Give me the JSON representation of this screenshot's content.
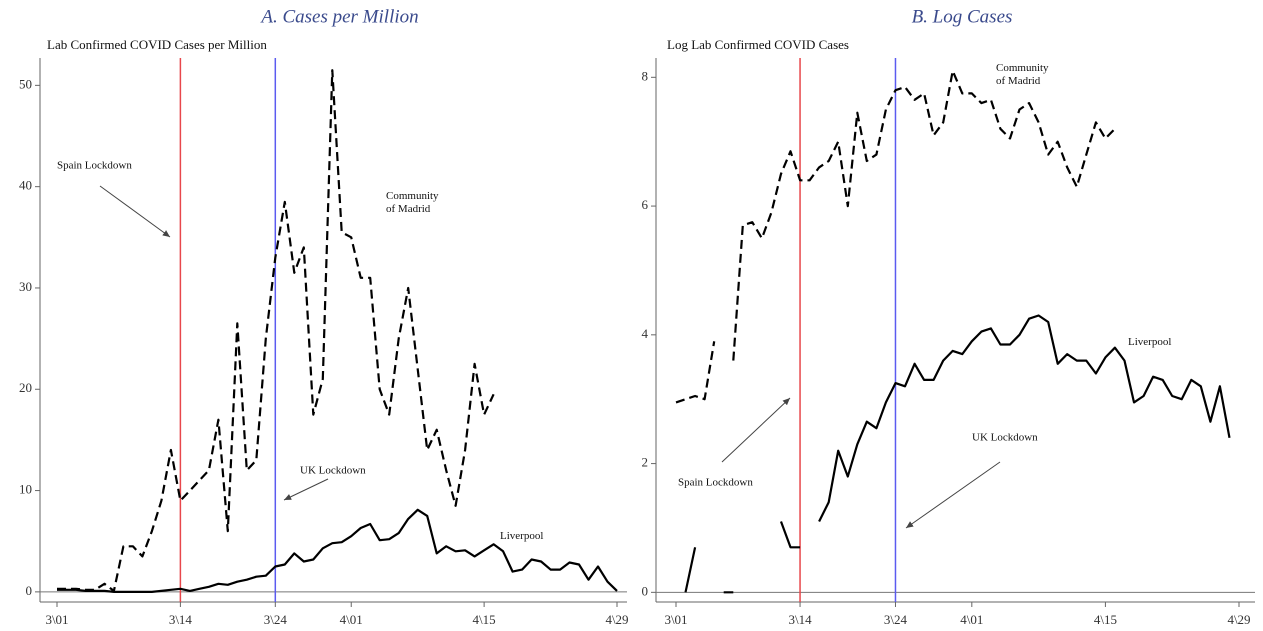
{
  "chart_data": [
    {
      "type": "line",
      "title": "A. Cases per Million",
      "ylabel": "Lab Confirmed COVID Cases per Million",
      "x": [
        "03-01",
        "03-02",
        "03-03",
        "03-04",
        "03-05",
        "03-06",
        "03-07",
        "03-08",
        "03-09",
        "03-10",
        "03-11",
        "03-12",
        "03-13",
        "03-14",
        "03-15",
        "03-16",
        "03-17",
        "03-18",
        "03-19",
        "03-20",
        "03-21",
        "03-22",
        "03-23",
        "03-24",
        "03-25",
        "03-26",
        "03-27",
        "03-28",
        "03-29",
        "03-30",
        "03-31",
        "04-01",
        "04-02",
        "04-03",
        "04-04",
        "04-05",
        "04-06",
        "04-07",
        "04-08",
        "04-09",
        "04-10",
        "04-11",
        "04-12",
        "04-13",
        "04-14",
        "04-15",
        "04-16",
        "04-17",
        "04-18",
        "04-19",
        "04-20",
        "04-21",
        "04-22",
        "04-23",
        "04-24",
        "04-25",
        "04-26",
        "04-27",
        "04-28",
        "04-29"
      ],
      "series": [
        {
          "name": "Community of Madrid",
          "color": "#000000",
          "dash": "dashed",
          "values": [
            0.3,
            0.3,
            0.3,
            0.2,
            0.2,
            0.8,
            0.1,
            4.5,
            4.5,
            3.5,
            6,
            9,
            14,
            9,
            10,
            11,
            12,
            17,
            6,
            26.5,
            12,
            13,
            25,
            33,
            38.5,
            31.5,
            34,
            17.5,
            21,
            51.5,
            35.5,
            35,
            31,
            31,
            20,
            17.5,
            25,
            30,
            22,
            14,
            16,
            12,
            8.5,
            14,
            22.5,
            17.5,
            19.5,
            null,
            null,
            null,
            null,
            null,
            null,
            null,
            null,
            null,
            null,
            null,
            null,
            null
          ]
        },
        {
          "name": "Liverpool",
          "color": "#000000",
          "dash": "solid",
          "values": [
            0.2,
            0.2,
            0.2,
            0.1,
            0.1,
            0.1,
            0,
            0,
            0,
            0,
            0,
            0.1,
            0.2,
            0.3,
            0.1,
            0.3,
            0.5,
            0.8,
            0.7,
            1,
            1.2,
            1.5,
            1.6,
            2.5,
            2.7,
            3.8,
            3,
            3.2,
            4.3,
            4.8,
            4.9,
            5.5,
            6.3,
            6.7,
            5.1,
            5.2,
            5.8,
            7.2,
            8.1,
            7.5,
            3.8,
            4.5,
            4,
            4.1,
            3.5,
            4.1,
            4.7,
            4,
            2,
            2.2,
            3.2,
            3,
            2.2,
            2.2,
            2.9,
            2.7,
            1.2,
            2.5,
            1,
            0.1
          ]
        }
      ],
      "vlines": [
        {
          "x": "03-14",
          "color": "#e8474b"
        },
        {
          "x": "03-24",
          "color": "#5b5bf0"
        }
      ],
      "annotations": [
        "Spain Lockdown",
        "UK Lockdown"
      ],
      "ylim": [
        -1,
        52.7
      ],
      "yticks": [
        0,
        10,
        20,
        30,
        40,
        50
      ],
      "xlim": [
        "03-01",
        "04-29"
      ],
      "xticks": [
        {
          "value": "03-01",
          "label": "3\\01"
        },
        {
          "value": "03-14",
          "label": "3\\14"
        },
        {
          "value": "03-24",
          "label": "3\\24"
        },
        {
          "value": "04-01",
          "label": "4\\01"
        },
        {
          "value": "04-15",
          "label": "4\\15"
        },
        {
          "value": "04-29",
          "label": "4\\29"
        }
      ]
    },
    {
      "type": "line",
      "title": "B. Log Cases",
      "ylabel": "Log Lab Confirmed COVID Cases",
      "x": [
        "03-01",
        "03-02",
        "03-03",
        "03-04",
        "03-05",
        "03-06",
        "03-07",
        "03-08",
        "03-09",
        "03-10",
        "03-11",
        "03-12",
        "03-13",
        "03-14",
        "03-15",
        "03-16",
        "03-17",
        "03-18",
        "03-19",
        "03-20",
        "03-21",
        "03-22",
        "03-23",
        "03-24",
        "03-25",
        "03-26",
        "03-27",
        "03-28",
        "03-29",
        "03-30",
        "03-31",
        "04-01",
        "04-02",
        "04-03",
        "04-04",
        "04-05",
        "04-06",
        "04-07",
        "04-08",
        "04-09",
        "04-10",
        "04-11",
        "04-12",
        "04-13",
        "04-14",
        "04-15",
        "04-16",
        "04-17",
        "04-18",
        "04-19",
        "04-20",
        "04-21",
        "04-22",
        "04-23",
        "04-24",
        "04-25",
        "04-26",
        "04-27",
        "04-28",
        "04-29"
      ],
      "series": [
        {
          "name": "Community of Madrid",
          "color": "#000000",
          "dash": "dashed",
          "values": [
            2.95,
            3.0,
            3.05,
            3.0,
            3.9,
            null,
            3.6,
            5.7,
            5.75,
            5.5,
            5.9,
            6.5,
            6.85,
            6.4,
            6.4,
            6.6,
            6.7,
            7.0,
            6.0,
            7.45,
            6.7,
            6.8,
            7.5,
            7.8,
            7.85,
            7.65,
            7.75,
            7.1,
            7.3,
            8.1,
            7.75,
            7.75,
            7.6,
            7.65,
            7.2,
            7.05,
            7.5,
            7.6,
            7.3,
            6.8,
            7.0,
            6.6,
            6.3,
            6.8,
            7.3,
            7.05,
            7.2,
            null,
            null,
            null,
            null,
            null,
            null,
            null,
            null,
            null,
            null,
            null,
            null,
            null
          ]
        },
        {
          "name": "Liverpool",
          "color": "#000000",
          "dash": "solid",
          "values": [
            null,
            0,
            0.7,
            null,
            null,
            0,
            0,
            null,
            null,
            null,
            null,
            1.1,
            0.7,
            0.7,
            null,
            1.1,
            1.4,
            2.2,
            1.8,
            2.3,
            2.65,
            2.55,
            2.95,
            3.25,
            3.2,
            3.55,
            3.3,
            3.3,
            3.6,
            3.75,
            3.7,
            3.9,
            4.05,
            4.1,
            3.85,
            3.85,
            4.0,
            4.25,
            4.3,
            4.2,
            3.55,
            3.7,
            3.6,
            3.6,
            3.4,
            3.65,
            3.8,
            3.6,
            2.95,
            3.05,
            3.35,
            3.3,
            3.05,
            3.0,
            3.3,
            3.2,
            2.65,
            3.2,
            2.4,
            null
          ]
        }
      ],
      "vlines": [
        {
          "x": "03-14",
          "color": "#e8474b"
        },
        {
          "x": "03-24",
          "color": "#5b5bf0"
        }
      ],
      "annotations": [
        "Spain Lockdown",
        "UK Lockdown"
      ],
      "ylim": [
        -0.15,
        8.3
      ],
      "yticks": [
        0,
        2,
        4,
        6,
        8
      ],
      "xlim": [
        "03-01",
        "04-29"
      ],
      "xticks": [
        {
          "value": "03-01",
          "label": "3\\01"
        },
        {
          "value": "03-14",
          "label": "3\\14"
        },
        {
          "value": "03-24",
          "label": "3\\24"
        },
        {
          "value": "04-01",
          "label": "4\\01"
        },
        {
          "value": "04-15",
          "label": "4\\15"
        },
        {
          "value": "04-29",
          "label": "4\\29"
        }
      ]
    }
  ]
}
